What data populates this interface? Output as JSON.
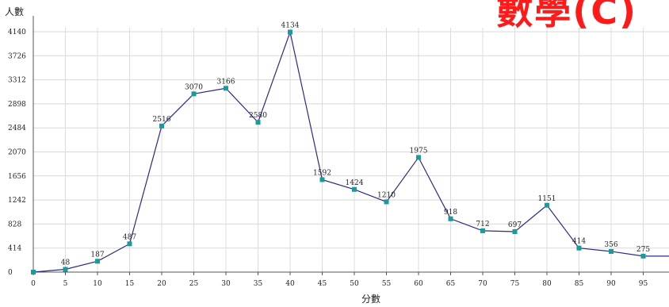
{
  "banner": "數學(C)",
  "chart_data": {
    "type": "line",
    "title": "",
    "xlabel": "分數",
    "ylabel": "人數",
    "x": [
      0,
      5,
      10,
      15,
      20,
      25,
      30,
      35,
      40,
      45,
      50,
      55,
      60,
      65,
      70,
      75,
      80,
      85,
      90,
      95,
      100
    ],
    "series": [
      {
        "values": [
          0,
          48,
          187,
          487,
          2516,
          3070,
          3166,
          2580,
          4134,
          1592,
          1424,
          1210,
          1975,
          918,
          712,
          697,
          1151,
          414,
          356,
          275,
          275
        ],
        "labels": [
          "",
          "48",
          "187",
          "487",
          "2516",
          "3070",
          "3166",
          "2580",
          "4134",
          "1592",
          "1424",
          "1210",
          "1975",
          "918",
          "712",
          "697",
          "1151",
          "414",
          "356",
          "275",
          ""
        ],
        "color": "#2a2a8a",
        "marker_color": "#1a9a9a"
      }
    ],
    "xticks": [
      "0",
      "5",
      "10",
      "15",
      "20",
      "25",
      "30",
      "35",
      "40",
      "45",
      "50",
      "55",
      "60",
      "65",
      "70",
      "75",
      "80",
      "85",
      "90",
      "95"
    ],
    "yticks": [
      "0",
      "414",
      "828",
      "1242",
      "1656",
      "2070",
      "2484",
      "2898",
      "3312",
      "3726",
      "4140"
    ],
    "ylim": [
      0,
      4140
    ],
    "xlim": [
      0,
      100
    ],
    "grid": true,
    "legend": "none"
  }
}
